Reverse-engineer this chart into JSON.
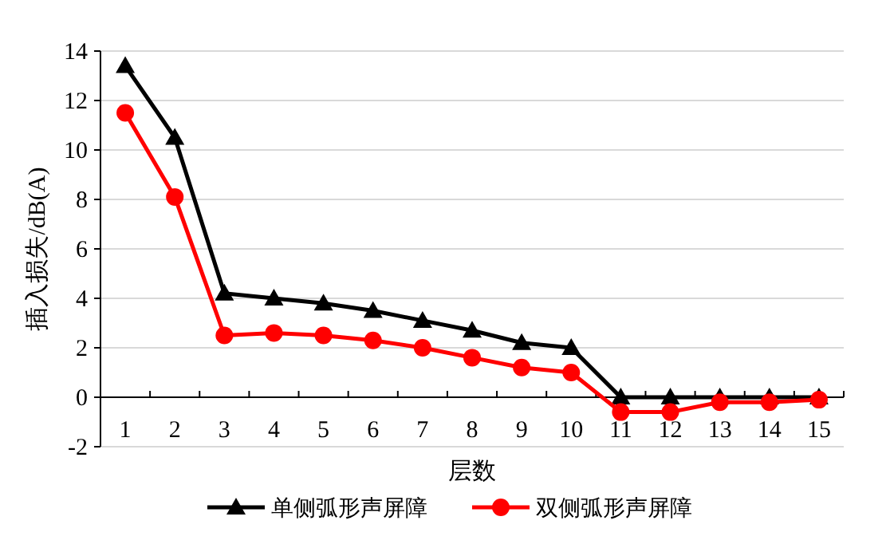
{
  "chart_data": {
    "type": "line",
    "xlabel": "层数",
    "ylabel": "插入损失/dB(A)",
    "categories": [
      "1",
      "2",
      "3",
      "4",
      "5",
      "6",
      "7",
      "8",
      "9",
      "10",
      "11",
      "12",
      "13",
      "14",
      "15"
    ],
    "series": [
      {
        "name": "单侧弧形声屏障",
        "color": "#000000",
        "marker": "triangle",
        "values": [
          13.4,
          10.5,
          4.2,
          4.0,
          3.8,
          3.5,
          3.1,
          2.7,
          2.2,
          2.0,
          0,
          0,
          0,
          0,
          0
        ]
      },
      {
        "name": "双侧弧形声屏障",
        "color": "#ff0000",
        "marker": "circle",
        "values": [
          11.5,
          8.1,
          2.5,
          2.6,
          2.5,
          2.3,
          2.0,
          1.6,
          1.2,
          1.0,
          -0.6,
          -0.6,
          -0.2,
          -0.2,
          -0.1
        ]
      }
    ],
    "ylim": [
      -2,
      14
    ],
    "yticks": [
      -2,
      0,
      2,
      4,
      6,
      8,
      10,
      12,
      14
    ],
    "grid": "y",
    "legend": "bottom",
    "line_style": "solid"
  }
}
